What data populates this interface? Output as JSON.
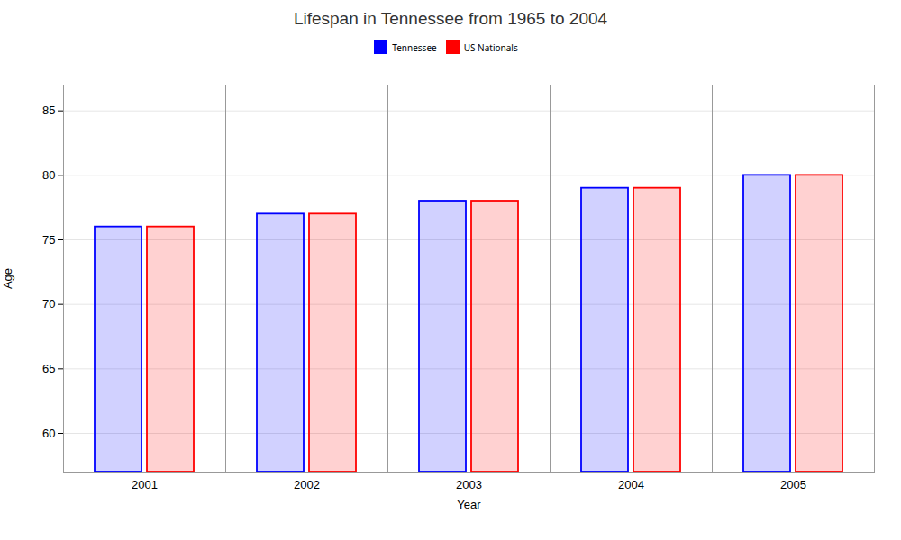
{
  "chart_data": {
    "type": "bar",
    "title": "Lifespan in Tennessee from 1965 to 2004",
    "xlabel": "Year",
    "ylabel": "Age",
    "categories": [
      "2001",
      "2002",
      "2003",
      "2004",
      "2005"
    ],
    "series": [
      {
        "name": "Tennessee",
        "color": "#0000ff",
        "values": [
          76,
          77,
          78,
          79,
          80
        ]
      },
      {
        "name": "US Nationals",
        "color": "#ff0000",
        "values": [
          76,
          77,
          78,
          79,
          80
        ]
      }
    ],
    "ylim": [
      57,
      87
    ],
    "yticks": [
      60,
      65,
      70,
      75,
      80,
      85
    ],
    "grid": true,
    "legend": "top"
  }
}
